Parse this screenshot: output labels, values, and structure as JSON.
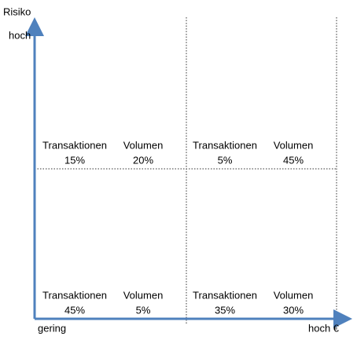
{
  "axes": {
    "y_title": "Risiko",
    "y_high": "hoch",
    "x_low": "gering",
    "x_high": "hoch €"
  },
  "quadrants": [
    {
      "transactions_label": "Transaktionen",
      "transactions_value": "15%",
      "volume_label": "Volumen",
      "volume_value": "20%"
    },
    {
      "transactions_label": "Transaktionen",
      "transactions_value": "5%",
      "volume_label": "Volumen",
      "volume_value": "45%"
    },
    {
      "transactions_label": "Transaktionen",
      "transactions_value": "45%",
      "volume_label": "Volumen",
      "volume_value": "5%"
    },
    {
      "transactions_label": "Transaktionen",
      "transactions_value": "35%",
      "volume_label": "Volumen",
      "volume_value": "30%"
    }
  ]
}
